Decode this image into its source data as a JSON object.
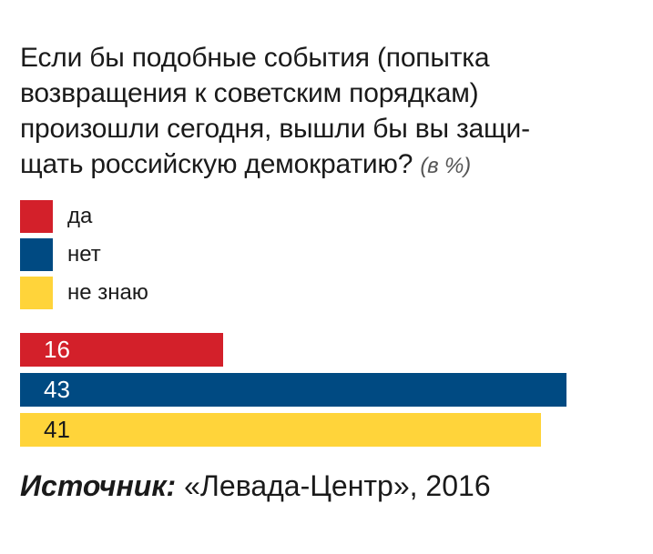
{
  "chart_data": {
    "type": "bar",
    "orientation": "horizontal",
    "title": "Если бы подобные события (попытка возвращения к советским порядкам) произошли сегодня, вышли бы вы защи-щать российскую демократию?",
    "unit_note": "(в %)",
    "categories": [
      "да",
      "нет",
      "не знаю"
    ],
    "values": [
      16,
      43,
      41
    ],
    "colors": [
      "#d3202a",
      "#004a82",
      "#ffd43a"
    ],
    "label_colors": [
      "#ffffff",
      "#ffffff",
      "#1a1a1a"
    ],
    "xlim": [
      0,
      48
    ],
    "legend_position": "top-left",
    "grid": false
  },
  "title_lines": [
    "Если бы подобные события (попытка",
    "возвращения к советским порядкам)",
    "произошли сегодня, вышли бы вы защи-",
    "щать российскую демократию?"
  ],
  "source": {
    "label": "Источник:",
    "text": "«Левада-Центр», 2016"
  }
}
